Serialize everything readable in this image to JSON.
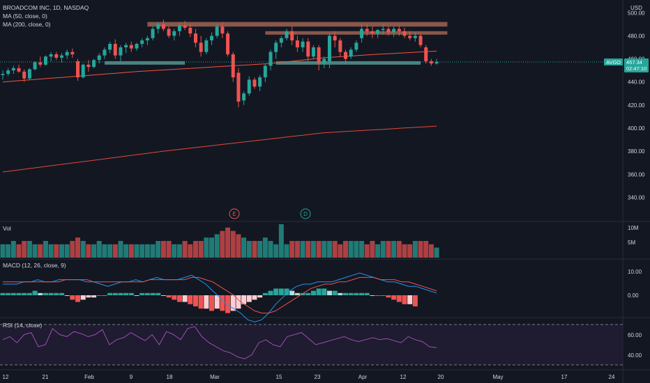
{
  "header": {
    "symbol_line": "BROADCOM INC, 1D, NASDAQ",
    "ma50_label": "MA (50, close, 0)",
    "ma200_label": "MA (200, close, 0)",
    "currency": "USD"
  },
  "price_axis": {
    "ticks": [
      "500.00",
      "480.00",
      "460.00",
      "440.00",
      "420.00",
      "400.00",
      "380.00",
      "360.00",
      "340.00"
    ],
    "tick_values": [
      500,
      480,
      460,
      440,
      420,
      400,
      380,
      360,
      340
    ],
    "ticker_badge": "AVGO",
    "last_price": "457.34",
    "countdown": "02:47:10",
    "last_value": 457.34
  },
  "events": [
    {
      "letter": "E",
      "name": "earnings"
    },
    {
      "letter": "D",
      "name": "dividend"
    }
  ],
  "volume_pane": {
    "label": "Vol",
    "ticks": [
      "10M",
      "5M"
    ]
  },
  "macd_pane": {
    "label": "MACD (12, 26, close, 9)",
    "ticks": [
      "10.00",
      "0.00"
    ]
  },
  "rsi_pane": {
    "label": "RSI (14, close)",
    "ticks": [
      "60.00",
      "40.00"
    ],
    "upper": 70,
    "lower": 30
  },
  "time_axis": {
    "labels": [
      "12",
      "21",
      "Feb",
      "9",
      "18",
      "Mar",
      "15",
      "23",
      "Apr",
      "12",
      "20",
      "May",
      "17",
      "24"
    ]
  },
  "colors": {
    "background": "#131722",
    "up": "#26a69a",
    "down": "#ef5350",
    "ma50": "#f2553e",
    "ma200": "#e04a3a",
    "resistance_zone": "#c97a63",
    "support_zone": "#6fb8b0",
    "rsi_line": "#9c4fb5",
    "macd_line": "#2196f3",
    "signal_line": "#ef5350",
    "text": "#b2b5be",
    "axis_text": "#d1d4dc"
  },
  "chart_data": {
    "type": "candlestick",
    "ylim": [
      330,
      505
    ],
    "candles": [
      [
        446,
        450,
        442,
        447
      ],
      [
        447,
        452,
        445,
        450
      ],
      [
        450,
        454,
        447,
        452
      ],
      [
        452,
        455,
        448,
        449
      ],
      [
        449,
        451,
        440,
        443
      ],
      [
        443,
        452,
        442,
        451
      ],
      [
        451,
        458,
        450,
        457
      ],
      [
        457,
        462,
        453,
        455
      ],
      [
        455,
        463,
        454,
        462
      ],
      [
        462,
        466,
        458,
        464
      ],
      [
        464,
        466,
        459,
        461
      ],
      [
        461,
        465,
        457,
        463
      ],
      [
        463,
        468,
        460,
        466
      ],
      [
        466,
        469,
        461,
        464
      ],
      [
        458,
        460,
        441,
        444
      ],
      [
        444,
        456,
        443,
        455
      ],
      [
        455,
        459,
        449,
        453
      ],
      [
        453,
        460,
        452,
        459
      ],
      [
        459,
        465,
        456,
        463
      ],
      [
        463,
        470,
        460,
        468
      ],
      [
        468,
        475,
        465,
        473
      ],
      [
        473,
        477,
        460,
        463
      ],
      [
        463,
        472,
        458,
        470
      ],
      [
        470,
        474,
        465,
        472
      ],
      [
        472,
        475,
        466,
        469
      ],
      [
        469,
        474,
        467,
        473
      ],
      [
        473,
        478,
        470,
        476
      ],
      [
        476,
        480,
        472,
        478
      ],
      [
        478,
        488,
        476,
        486
      ],
      [
        486,
        492,
        482,
        490
      ],
      [
        490,
        494,
        484,
        486
      ],
      [
        486,
        488,
        478,
        480
      ],
      [
        480,
        486,
        476,
        484
      ],
      [
        484,
        492,
        480,
        489
      ],
      [
        489,
        493,
        485,
        487
      ],
      [
        487,
        490,
        479,
        482
      ],
      [
        482,
        486,
        470,
        474
      ],
      [
        474,
        480,
        462,
        466
      ],
      [
        466,
        478,
        464,
        476
      ],
      [
        476,
        483,
        472,
        480
      ],
      [
        480,
        490,
        478,
        488
      ],
      [
        488,
        492,
        478,
        482
      ],
      [
        482,
        484,
        462,
        464
      ],
      [
        464,
        466,
        440,
        444
      ],
      [
        448,
        452,
        418,
        423
      ],
      [
        424,
        432,
        420,
        430
      ],
      [
        430,
        445,
        428,
        442
      ],
      [
        442,
        444,
        434,
        436
      ],
      [
        436,
        446,
        432,
        444
      ],
      [
        444,
        456,
        440,
        454
      ],
      [
        454,
        468,
        450,
        466
      ],
      [
        466,
        476,
        460,
        474
      ],
      [
        474,
        480,
        470,
        478
      ],
      [
        478,
        486,
        476,
        484
      ],
      [
        484,
        488,
        472,
        476
      ],
      [
        476,
        480,
        466,
        470
      ],
      [
        470,
        478,
        466,
        475
      ],
      [
        475,
        478,
        458,
        462
      ],
      [
        462,
        472,
        460,
        470
      ],
      [
        470,
        472,
        450,
        456
      ],
      [
        456,
        462,
        452,
        460
      ],
      [
        458,
        482,
        452,
        480
      ],
      [
        480,
        484,
        470,
        476
      ],
      [
        476,
        478,
        462,
        466
      ],
      [
        466,
        468,
        456,
        460
      ],
      [
        462,
        470,
        460,
        468
      ],
      [
        468,
        476,
        466,
        474
      ],
      [
        478,
        490,
        474,
        486
      ],
      [
        486,
        490,
        480,
        484
      ],
      [
        484,
        488,
        478,
        482
      ],
      [
        482,
        486,
        478,
        485
      ],
      [
        485,
        490,
        481,
        486
      ],
      [
        486,
        488,
        480,
        483
      ],
      [
        483,
        488,
        479,
        486
      ],
      [
        486,
        489,
        480,
        484
      ],
      [
        484,
        487,
        478,
        480
      ],
      [
        480,
        484,
        476,
        478
      ],
      [
        478,
        483,
        475,
        480
      ],
      [
        480,
        482,
        470,
        472
      ],
      [
        470,
        472,
        456,
        458
      ],
      [
        458,
        460,
        454,
        456
      ],
      [
        456,
        460,
        455,
        457.34
      ]
    ],
    "ma50_anchor_values": [
      [
        0,
        440
      ],
      [
        25,
        449
      ],
      [
        50,
        456
      ],
      [
        60,
        461
      ],
      [
        70,
        464
      ],
      [
        82,
        467
      ]
    ],
    "ma200_anchor_values": [
      [
        0,
        362
      ],
      [
        30,
        380
      ],
      [
        60,
        396
      ],
      [
        82,
        402
      ]
    ],
    "zones": [
      {
        "kind": "resistance",
        "from": 27,
        "to": 83,
        "low": 488,
        "high": 492
      },
      {
        "kind": "resistance",
        "from": 49,
        "to": 83,
        "low": 481,
        "high": 484
      },
      {
        "kind": "support",
        "from": 19,
        "to": 34,
        "low": 455,
        "high": 458
      },
      {
        "kind": "support",
        "from": 51,
        "to": 78,
        "low": 455,
        "high": 458
      }
    ],
    "volume": [
      4,
      4,
      5,
      4,
      5,
      5,
      4,
      4,
      5,
      4,
      4,
      4,
      4,
      5,
      6,
      5,
      4,
      4,
      5,
      4,
      4,
      4,
      5,
      4,
      4,
      4,
      4,
      4,
      4,
      5,
      5,
      5,
      4,
      4,
      5,
      4,
      5,
      5,
      6,
      6,
      7,
      8,
      9,
      8,
      7,
      6,
      5,
      5,
      5,
      6,
      5,
      4,
      10,
      4,
      5,
      5,
      5,
      5,
      5,
      5,
      5,
      5,
      5,
      4,
      5,
      5,
      5,
      5,
      4,
      5,
      4,
      5,
      5,
      5,
      5,
      4,
      4,
      5,
      5,
      5,
      4,
      3
    ],
    "macd_hist": [
      1,
      1,
      1,
      1,
      1,
      1,
      2,
      1,
      1,
      1,
      1,
      1,
      0,
      -2,
      -3,
      -2,
      -1,
      -1,
      0,
      0,
      1,
      1,
      1,
      1,
      1,
      0,
      1,
      1,
      1,
      1,
      0,
      -1,
      -2,
      -3,
      -3,
      -4,
      -5,
      -6,
      -6,
      -7,
      -6,
      -7,
      -8,
      -7,
      -6,
      -4,
      -3,
      -2,
      -1,
      1,
      2,
      3,
      3,
      3,
      2,
      1,
      1,
      1,
      2,
      3,
      3,
      2,
      2,
      1,
      1,
      1,
      1,
      1,
      1,
      0,
      0,
      0,
      -1,
      -2,
      -3,
      -4,
      -4,
      -5
    ],
    "macd_line_values": [
      5,
      5,
      5,
      6,
      6,
      7,
      6,
      6,
      7,
      7,
      7,
      7,
      6,
      6,
      5,
      4,
      5,
      6,
      6,
      7,
      6,
      7,
      8,
      7,
      7,
      7,
      8,
      9,
      7,
      5,
      2,
      -1,
      -4,
      -6,
      -8,
      -11,
      -12,
      -11,
      -8,
      -4,
      -1,
      2,
      4,
      5,
      5,
      6,
      6,
      6,
      7,
      8,
      9,
      10,
      9,
      8,
      7,
      6,
      6,
      5,
      4,
      4,
      3,
      2,
      1
    ],
    "signal_line_values": [
      6,
      6,
      6,
      6,
      6,
      6,
      6,
      6,
      6,
      7,
      7,
      7,
      7,
      6,
      6,
      6,
      6,
      6,
      6,
      6,
      6,
      7,
      7,
      7,
      7,
      7,
      7,
      8,
      8,
      7,
      6,
      4,
      2,
      0,
      -3,
      -5,
      -7,
      -8,
      -8,
      -7,
      -5,
      -3,
      -1,
      1,
      3,
      4,
      5,
      5,
      6,
      6,
      7,
      8,
      8,
      8,
      7,
      7,
      7,
      6,
      6,
      5,
      4,
      3,
      2
    ],
    "rsi_values": [
      55,
      58,
      52,
      60,
      62,
      48,
      50,
      66,
      60,
      58,
      63,
      61,
      58,
      60,
      65,
      50,
      55,
      57,
      62,
      58,
      54,
      60,
      50,
      63,
      60,
      55,
      66,
      68,
      58,
      52,
      48,
      44,
      42,
      38,
      36,
      40,
      52,
      55,
      50,
      48,
      58,
      60,
      62,
      56,
      50,
      52,
      54,
      56,
      58,
      55,
      53,
      55,
      57,
      55,
      56,
      54,
      52,
      58,
      55,
      53,
      48,
      47
    ]
  }
}
